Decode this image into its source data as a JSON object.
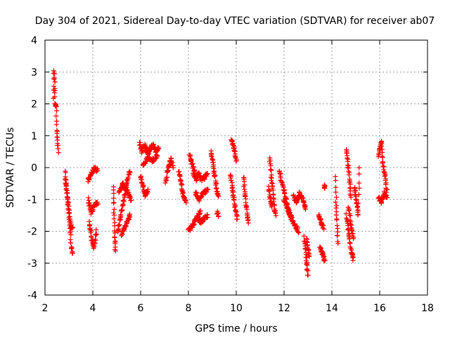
{
  "chart_data": {
    "type": "scatter",
    "title": "Day 304 of 2021, Sidereal Day-to-day VTEC variation (SDTVAR) for receiver ab07",
    "xlabel": "GPS time / hours",
    "ylabel": "SDTVAR / TECUs",
    "xlim": [
      2,
      18
    ],
    "ylim": [
      -4,
      4
    ],
    "xticks": [
      2,
      4,
      6,
      8,
      10,
      12,
      14,
      16,
      18
    ],
    "yticks": [
      -4,
      -3,
      -2,
      -1,
      0,
      1,
      2,
      3,
      4
    ],
    "grid": true,
    "marker": "plus",
    "color": "#ff0000",
    "segments": [
      {
        "x0": 2.35,
        "x1": 2.55,
        "y": [
          2.2,
          3.1,
          2.5,
          1.9,
          2.0,
          1.2,
          0.9,
          0.5
        ]
      },
      {
        "x0": 2.85,
        "x1": 3.15,
        "y": [
          -0.1,
          -0.6,
          -1.0,
          -1.5,
          -2.0,
          -2.5,
          -2.7
        ]
      },
      {
        "x0": 2.85,
        "x1": 3.15,
        "y": [
          -0.4,
          -0.9,
          -1.3,
          -1.8,
          -1.9
        ]
      },
      {
        "x0": 3.8,
        "x1": 4.2,
        "y": [
          -0.4,
          -0.2,
          0.0,
          -0.1
        ]
      },
      {
        "x0": 3.8,
        "x1": 4.2,
        "y": [
          -1.0,
          -1.4,
          -1.2,
          -1.1
        ]
      },
      {
        "x0": 3.85,
        "x1": 4.15,
        "y": [
          -1.7,
          -2.2,
          -2.5,
          -2.0
        ]
      },
      {
        "x0": 4.85,
        "x1": 4.95,
        "y": [
          -0.6,
          -1.2,
          -1.8,
          -2.3,
          -2.6
        ]
      },
      {
        "x0": 5.05,
        "x1": 5.55,
        "y": [
          -2.0,
          -1.6,
          -1.2,
          -0.8,
          -0.4,
          -0.1
        ]
      },
      {
        "x0": 5.1,
        "x1": 5.6,
        "y": [
          -0.8,
          -0.5,
          -0.7,
          -1.0
        ]
      },
      {
        "x0": 5.2,
        "x1": 5.55,
        "y": [
          -2.1,
          -1.8,
          -1.5
        ]
      },
      {
        "x0": 5.95,
        "x1": 6.75,
        "y": [
          0.8,
          0.5,
          0.7,
          0.4,
          0.6,
          0.7,
          0.5,
          0.6
        ]
      },
      {
        "x0": 6.0,
        "x1": 6.3,
        "y": [
          -0.3,
          -0.6,
          -0.9,
          -0.7
        ]
      },
      {
        "x0": 6.1,
        "x1": 6.7,
        "y": [
          0.1,
          0.3,
          0.2,
          0.4
        ]
      },
      {
        "x0": 7.05,
        "x1": 7.35,
        "y": [
          -0.5,
          -0.1,
          0.1,
          0.3,
          0.0
        ]
      },
      {
        "x0": 7.6,
        "x1": 7.9,
        "y": [
          -0.1,
          -0.5,
          -0.9,
          -1.1
        ]
      },
      {
        "x0": 8.0,
        "x1": 8.5,
        "y": [
          -2.0,
          -1.7,
          -1.4
        ]
      },
      {
        "x0": 8.05,
        "x1": 8.35,
        "y": [
          0.4,
          0.0,
          -0.4
        ]
      },
      {
        "x0": 8.2,
        "x1": 8.8,
        "y": [
          -0.2,
          -0.3,
          -0.2,
          -0.4,
          -0.3,
          -0.2
        ]
      },
      {
        "x0": 8.3,
        "x1": 8.8,
        "y": [
          -0.8,
          -1.0,
          -0.8,
          -0.7
        ]
      },
      {
        "x0": 8.4,
        "x1": 8.8,
        "y": [
          -1.6,
          -1.7,
          -1.6,
          -1.5
        ]
      },
      {
        "x0": 8.95,
        "x1": 9.25,
        "y": [
          0.5,
          0.2,
          -0.1,
          -0.4,
          -0.7,
          -0.9
        ]
      },
      {
        "x0": 9.2,
        "x1": 9.25,
        "y": [
          -1.4,
          -1.5
        ]
      },
      {
        "x0": 9.8,
        "x1": 10.0,
        "y": [
          0.9,
          0.7,
          0.5,
          0.2
        ]
      },
      {
        "x0": 9.75,
        "x1": 10.05,
        "y": [
          -0.2,
          -0.6,
          -1.0,
          -1.3,
          -1.6
        ]
      },
      {
        "x0": 10.3,
        "x1": 10.5,
        "y": [
          -0.3,
          -0.7,
          -1.1,
          -1.5,
          -1.7
        ]
      },
      {
        "x0": 11.4,
        "x1": 11.65,
        "y": [
          0.3,
          -0.1,
          -0.5,
          -0.9,
          -1.3,
          -1.5
        ]
      },
      {
        "x0": 11.35,
        "x1": 11.5,
        "y": [
          -0.6,
          -1.0,
          -1.2
        ]
      },
      {
        "x0": 11.8,
        "x1": 12.3,
        "y": [
          -0.1,
          -0.5,
          -0.9,
          -1.3,
          -1.5
        ]
      },
      {
        "x0": 12.0,
        "x1": 12.6,
        "y": [
          -1.0,
          -1.3,
          -1.6,
          -1.8,
          -2.0
        ]
      },
      {
        "x0": 12.4,
        "x1": 12.9,
        "y": [
          -0.9,
          -1.1,
          -0.8,
          -1.0,
          -1.3
        ]
      },
      {
        "x0": 12.85,
        "x1": 13.0,
        "y": [
          -2.2,
          -2.6,
          -3.0,
          -3.4
        ]
      },
      {
        "x0": 12.95,
        "x1": 13.05,
        "y": [
          -2.2,
          -2.5,
          -2.8
        ]
      },
      {
        "x0": 13.45,
        "x1": 13.65,
        "y": [
          -1.5,
          -1.7,
          -1.9
        ]
      },
      {
        "x0": 13.5,
        "x1": 13.7,
        "y": [
          -2.5,
          -2.7,
          -2.9
        ]
      },
      {
        "x0": 13.7,
        "x1": 13.7,
        "y": [
          -0.6
        ]
      },
      {
        "x0": 14.15,
        "x1": 14.25,
        "y": [
          -0.3,
          -1.2,
          -1.8,
          -2.4
        ]
      },
      {
        "x0": 14.6,
        "x1": 14.8,
        "y": [
          0.6,
          0.3,
          -0.1,
          -0.5,
          -0.9
        ]
      },
      {
        "x0": 14.6,
        "x1": 14.9,
        "y": [
          -1.5,
          -1.9,
          -2.3,
          -2.7,
          -2.9
        ]
      },
      {
        "x0": 14.7,
        "x1": 14.9,
        "y": [
          -1.2,
          -1.8,
          -2.2
        ]
      },
      {
        "x0": 14.95,
        "x1": 15.15,
        "y": [
          -0.6,
          -0.9,
          -1.2,
          -1.5,
          0.0
        ]
      },
      {
        "x0": 15.95,
        "x1": 16.3,
        "y": [
          0.4,
          0.6,
          0.8,
          0.2,
          -0.1,
          -0.4,
          -0.8
        ]
      },
      {
        "x0": 15.95,
        "x1": 16.3,
        "y": [
          -0.9,
          -1.1,
          -0.8,
          -0.9
        ]
      }
    ]
  }
}
